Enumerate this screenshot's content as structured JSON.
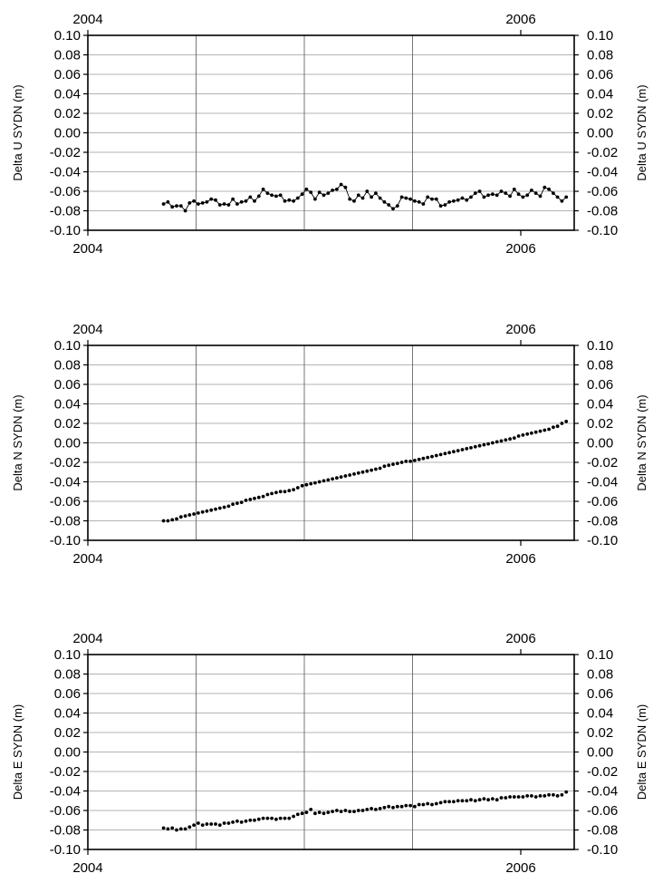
{
  "chart_data": [
    {
      "type": "scatter",
      "ylabel_left": "Delta U SYDN (m)",
      "ylabel_right": "Delta U SYDN (m)",
      "x_tick_labels": [
        "2004",
        "2006"
      ],
      "yticks": [
        "0.10",
        "0.08",
        "0.06",
        "0.04",
        "0.02",
        "0.00",
        "-0.02",
        "-0.04",
        "-0.06",
        "-0.08",
        "-0.10"
      ],
      "ylim": [
        -0.1,
        0.1
      ],
      "xlim": [
        2004.0,
        2006.5
      ],
      "grid": true,
      "marker_color": "#000000",
      "connected": true,
      "series": [
        {
          "x": [
            2004.35,
            2004.37,
            2004.39,
            2004.41,
            2004.43,
            2004.45,
            2004.47,
            2004.49,
            2004.51,
            2004.53,
            2004.55,
            2004.57,
            2004.59,
            2004.61,
            2004.63,
            2004.65,
            2004.67,
            2004.69,
            2004.71,
            2004.73,
            2004.75,
            2004.77,
            2004.79,
            2004.81,
            2004.83,
            2004.85,
            2004.87,
            2004.89,
            2004.91,
            2004.93,
            2004.95,
            2004.97,
            2004.99,
            2005.01,
            2005.03,
            2005.05,
            2005.07,
            2005.09,
            2005.11,
            2005.13,
            2005.15,
            2005.17,
            2005.19,
            2005.21,
            2005.23,
            2005.25,
            2005.27,
            2005.29,
            2005.31,
            2005.33,
            2005.35,
            2005.37,
            2005.39,
            2005.41,
            2005.43,
            2005.45,
            2005.47,
            2005.49,
            2005.51,
            2005.53,
            2005.55,
            2005.57,
            2005.59,
            2005.61,
            2005.63,
            2005.65,
            2005.67,
            2005.69,
            2005.71,
            2005.73,
            2005.75,
            2005.77,
            2005.79,
            2005.81,
            2005.83,
            2005.85,
            2005.87,
            2005.89,
            2005.91,
            2005.93,
            2005.95,
            2005.97,
            2005.99,
            2006.01,
            2006.03,
            2006.05,
            2006.07,
            2006.09,
            2006.11,
            2006.13,
            2006.15,
            2006.17,
            2006.19,
            2006.21
          ],
          "y": [
            -0.073,
            -0.071,
            -0.076,
            -0.075,
            -0.075,
            -0.08,
            -0.072,
            -0.07,
            -0.073,
            -0.072,
            -0.071,
            -0.068,
            -0.069,
            -0.074,
            -0.073,
            -0.074,
            -0.068,
            -0.073,
            -0.071,
            -0.07,
            -0.066,
            -0.07,
            -0.065,
            -0.058,
            -0.062,
            -0.064,
            -0.065,
            -0.064,
            -0.07,
            -0.069,
            -0.07,
            -0.067,
            -0.063,
            -0.058,
            -0.061,
            -0.068,
            -0.061,
            -0.064,
            -0.062,
            -0.059,
            -0.058,
            -0.053,
            -0.056,
            -0.068,
            -0.07,
            -0.064,
            -0.067,
            -0.06,
            -0.066,
            -0.062,
            -0.067,
            -0.071,
            -0.074,
            -0.078,
            -0.075,
            -0.066,
            -0.067,
            -0.068,
            -0.07,
            -0.071,
            -0.073,
            -0.066,
            -0.068,
            -0.068,
            -0.075,
            -0.074,
            -0.071,
            -0.07,
            -0.069,
            -0.067,
            -0.069,
            -0.066,
            -0.062,
            -0.06,
            -0.066,
            -0.064,
            -0.063,
            -0.064,
            -0.06,
            -0.062,
            -0.065,
            -0.058,
            -0.063,
            -0.066,
            -0.064,
            -0.059,
            -0.062,
            -0.065,
            -0.056,
            -0.058,
            -0.062,
            -0.066,
            -0.07,
            -0.066
          ]
        }
      ]
    },
    {
      "type": "scatter",
      "ylabel_left": "Delta N SYDN (m)",
      "ylabel_right": "Delta N SYDN (m)",
      "x_tick_labels": [
        "2004",
        "2006"
      ],
      "yticks": [
        "0.10",
        "0.08",
        "0.06",
        "0.04",
        "0.02",
        "0.00",
        "-0.02",
        "-0.04",
        "-0.06",
        "-0.08",
        "-0.10"
      ],
      "ylim": [
        -0.1,
        0.1
      ],
      "xlim": [
        2004.0,
        2006.5
      ],
      "grid": true,
      "marker_color": "#000000",
      "connected": false,
      "series": [
        {
          "x": [
            2004.35,
            2004.37,
            2004.39,
            2004.41,
            2004.43,
            2004.45,
            2004.47,
            2004.49,
            2004.51,
            2004.53,
            2004.55,
            2004.57,
            2004.59,
            2004.61,
            2004.63,
            2004.65,
            2004.67,
            2004.69,
            2004.71,
            2004.73,
            2004.75,
            2004.77,
            2004.79,
            2004.81,
            2004.83,
            2004.85,
            2004.87,
            2004.89,
            2004.91,
            2004.93,
            2004.95,
            2004.97,
            2004.99,
            2005.01,
            2005.03,
            2005.05,
            2005.07,
            2005.09,
            2005.11,
            2005.13,
            2005.15,
            2005.17,
            2005.19,
            2005.21,
            2005.23,
            2005.25,
            2005.27,
            2005.29,
            2005.31,
            2005.33,
            2005.35,
            2005.37,
            2005.39,
            2005.41,
            2005.43,
            2005.45,
            2005.47,
            2005.49,
            2005.51,
            2005.53,
            2005.55,
            2005.57,
            2005.59,
            2005.61,
            2005.63,
            2005.65,
            2005.67,
            2005.69,
            2005.71,
            2005.73,
            2005.75,
            2005.77,
            2005.79,
            2005.81,
            2005.83,
            2005.85,
            2005.87,
            2005.89,
            2005.91,
            2005.93,
            2005.95,
            2005.97,
            2005.99,
            2006.01,
            2006.03,
            2006.05,
            2006.07,
            2006.09,
            2006.11,
            2006.13,
            2006.15,
            2006.17,
            2006.19,
            2006.21
          ],
          "y": [
            -0.08,
            -0.08,
            -0.079,
            -0.078,
            -0.076,
            -0.075,
            -0.074,
            -0.073,
            -0.072,
            -0.071,
            -0.07,
            -0.069,
            -0.068,
            -0.067,
            -0.066,
            -0.065,
            -0.063,
            -0.062,
            -0.061,
            -0.059,
            -0.058,
            -0.057,
            -0.056,
            -0.055,
            -0.053,
            -0.052,
            -0.051,
            -0.05,
            -0.05,
            -0.049,
            -0.048,
            -0.046,
            -0.044,
            -0.043,
            -0.042,
            -0.041,
            -0.04,
            -0.039,
            -0.038,
            -0.037,
            -0.036,
            -0.035,
            -0.034,
            -0.033,
            -0.032,
            -0.031,
            -0.03,
            -0.029,
            -0.028,
            -0.027,
            -0.026,
            -0.024,
            -0.023,
            -0.022,
            -0.021,
            -0.02,
            -0.019,
            -0.019,
            -0.018,
            -0.017,
            -0.016,
            -0.015,
            -0.014,
            -0.013,
            -0.012,
            -0.011,
            -0.01,
            -0.009,
            -0.008,
            -0.007,
            -0.006,
            -0.005,
            -0.004,
            -0.003,
            -0.002,
            -0.001,
            0.0,
            0.001,
            0.002,
            0.003,
            0.004,
            0.005,
            0.007,
            0.008,
            0.009,
            0.01,
            0.011,
            0.012,
            0.013,
            0.014,
            0.016,
            0.017,
            0.02,
            0.022
          ]
        }
      ]
    },
    {
      "type": "scatter",
      "ylabel_left": "Delta E SYDN (m)",
      "ylabel_right": "Delta E SYDN (m)",
      "x_tick_labels": [
        "2004",
        "2006"
      ],
      "yticks": [
        "0.10",
        "0.08",
        "0.06",
        "0.04",
        "0.02",
        "0.00",
        "-0.02",
        "-0.04",
        "-0.06",
        "-0.08",
        "-0.10"
      ],
      "ylim": [
        -0.1,
        0.1
      ],
      "xlim": [
        2004.0,
        2006.5
      ],
      "grid": true,
      "marker_color": "#000000",
      "connected": false,
      "series": [
        {
          "x": [
            2004.35,
            2004.37,
            2004.39,
            2004.41,
            2004.43,
            2004.45,
            2004.47,
            2004.49,
            2004.51,
            2004.53,
            2004.55,
            2004.57,
            2004.59,
            2004.61,
            2004.63,
            2004.65,
            2004.67,
            2004.69,
            2004.71,
            2004.73,
            2004.75,
            2004.77,
            2004.79,
            2004.81,
            2004.83,
            2004.85,
            2004.87,
            2004.89,
            2004.91,
            2004.93,
            2004.95,
            2004.97,
            2004.99,
            2005.01,
            2005.03,
            2005.05,
            2005.07,
            2005.09,
            2005.11,
            2005.13,
            2005.15,
            2005.17,
            2005.19,
            2005.21,
            2005.23,
            2005.25,
            2005.27,
            2005.29,
            2005.31,
            2005.33,
            2005.35,
            2005.37,
            2005.39,
            2005.41,
            2005.43,
            2005.45,
            2005.47,
            2005.49,
            2005.51,
            2005.53,
            2005.55,
            2005.57,
            2005.59,
            2005.61,
            2005.63,
            2005.65,
            2005.67,
            2005.69,
            2005.71,
            2005.73,
            2005.75,
            2005.77,
            2005.79,
            2005.81,
            2005.83,
            2005.85,
            2005.87,
            2005.89,
            2005.91,
            2005.93,
            2005.95,
            2005.97,
            2005.99,
            2006.01,
            2006.03,
            2006.05,
            2006.07,
            2006.09,
            2006.11,
            2006.13,
            2006.15,
            2006.17,
            2006.19,
            2006.21
          ],
          "y": [
            -0.078,
            -0.079,
            -0.078,
            -0.08,
            -0.079,
            -0.079,
            -0.077,
            -0.075,
            -0.073,
            -0.075,
            -0.074,
            -0.074,
            -0.074,
            -0.075,
            -0.073,
            -0.073,
            -0.072,
            -0.071,
            -0.072,
            -0.071,
            -0.07,
            -0.07,
            -0.069,
            -0.068,
            -0.068,
            -0.068,
            -0.069,
            -0.068,
            -0.068,
            -0.068,
            -0.066,
            -0.064,
            -0.063,
            -0.062,
            -0.059,
            -0.063,
            -0.062,
            -0.063,
            -0.062,
            -0.061,
            -0.06,
            -0.061,
            -0.06,
            -0.061,
            -0.061,
            -0.06,
            -0.06,
            -0.059,
            -0.058,
            -0.059,
            -0.058,
            -0.057,
            -0.056,
            -0.057,
            -0.056,
            -0.056,
            -0.055,
            -0.055,
            -0.056,
            -0.054,
            -0.054,
            -0.053,
            -0.054,
            -0.053,
            -0.052,
            -0.051,
            -0.051,
            -0.051,
            -0.05,
            -0.05,
            -0.05,
            -0.049,
            -0.05,
            -0.049,
            -0.048,
            -0.049,
            -0.048,
            -0.049,
            -0.047,
            -0.047,
            -0.046,
            -0.046,
            -0.046,
            -0.046,
            -0.045,
            -0.045,
            -0.046,
            -0.045,
            -0.045,
            -0.044,
            -0.044,
            -0.045,
            -0.044,
            -0.041
          ]
        }
      ]
    }
  ]
}
